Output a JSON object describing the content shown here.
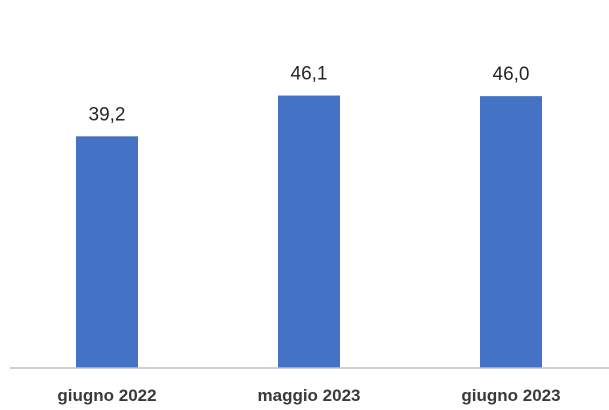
{
  "chart_data": {
    "type": "bar",
    "categories": [
      "giugno 2022",
      "maggio 2023",
      "giugno 2023"
    ],
    "values": [
      39.2,
      46.1,
      46.0
    ],
    "value_labels": [
      "39,2",
      "46,1",
      "46,0"
    ],
    "title": "",
    "xlabel": "",
    "ylabel": "",
    "ylim": [
      0,
      50
    ],
    "bar_color": "#4472C4",
    "axis_color": "#BFBFBF",
    "grid": false,
    "legend": "none"
  }
}
